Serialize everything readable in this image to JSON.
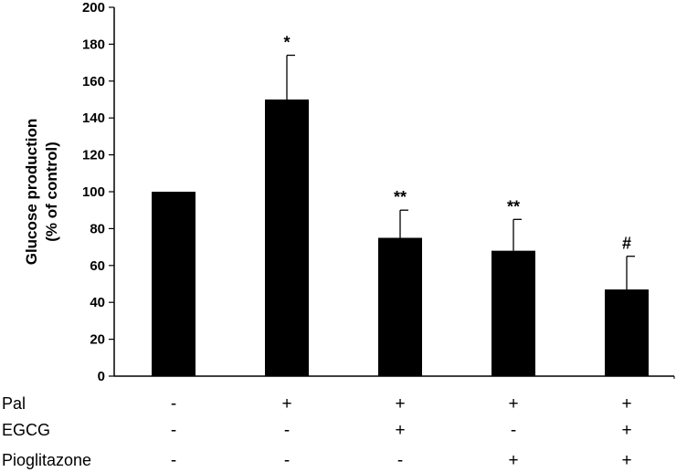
{
  "chart_data": {
    "type": "bar",
    "title": "",
    "ylabel_lines": [
      "Glucose production",
      "(% of control)"
    ],
    "ylim": [
      0,
      200
    ],
    "yticks": [
      0,
      20,
      40,
      60,
      80,
      100,
      120,
      140,
      160,
      180,
      200
    ],
    "values": [
      100,
      150,
      75,
      68,
      47
    ],
    "errors": [
      0,
      24,
      15,
      17,
      18
    ],
    "significance": [
      "",
      "*",
      "**",
      "**",
      "#"
    ],
    "colors": {
      "bar": "#000000",
      "axis": "#000000"
    },
    "conditions": [
      {
        "name": "Pal",
        "signs": [
          "-",
          "+",
          "+",
          "+",
          "+"
        ]
      },
      {
        "name": "EGCG",
        "signs": [
          "-",
          "-",
          "+",
          "-",
          "+"
        ]
      },
      {
        "name": "Pioglitazone",
        "signs": [
          "-",
          "-",
          "-",
          "+",
          "+"
        ]
      }
    ]
  }
}
